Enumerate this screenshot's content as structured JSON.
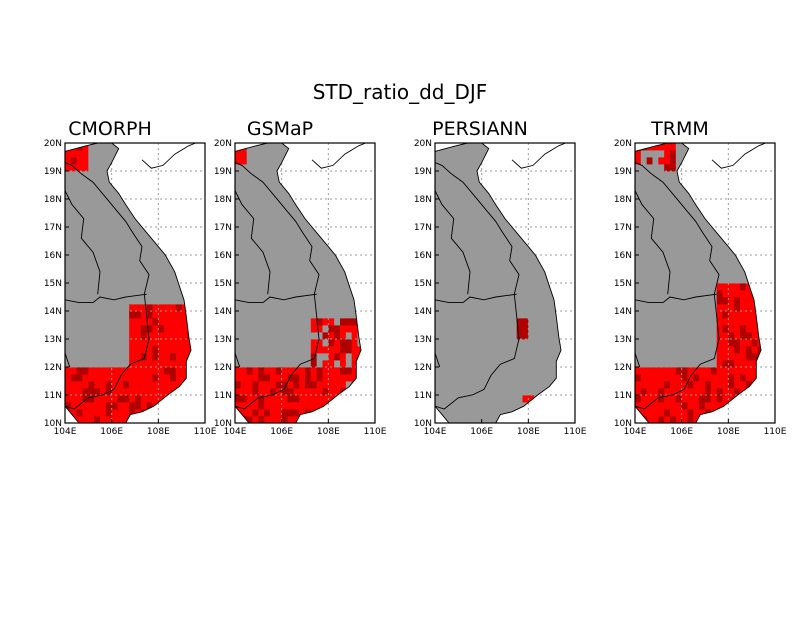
{
  "title": "STD_ratio_dd_DJF",
  "panels": [
    {
      "name": "CMORPH"
    },
    {
      "name": "GSMaP"
    },
    {
      "name": "PERSIANN"
    },
    {
      "name": "TRMM"
    }
  ],
  "lat_ticks": [
    "10N",
    "11N",
    "12N",
    "13N",
    "14N",
    "15N",
    "16N",
    "17N",
    "18N",
    "19N",
    "20N"
  ],
  "lon_ticks": [
    "104E",
    "106E",
    "108E",
    "110E"
  ],
  "colors": {
    "land_mask": "#999999",
    "high": "#ff0000",
    "very_high": "#b00000",
    "grid": "#999999"
  }
}
